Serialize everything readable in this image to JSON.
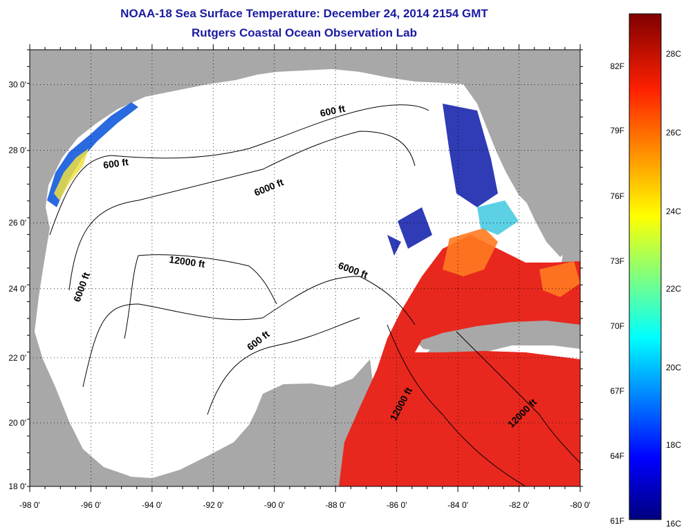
{
  "title": {
    "line1": "NOAA-18 Sea Surface Temperature:  December 24, 2014 2154 GMT",
    "line2": "Rutgers Coastal Ocean Observation Lab"
  },
  "axes": {
    "lon_labels": [
      "-98 0'",
      "-96 0'",
      "-94 0'",
      "-92 0'",
      "-90 0'",
      "-88 0'",
      "-86 0'",
      "-84 0'",
      "-82 0'",
      "-80 0'"
    ],
    "lat_labels": [
      "30 0'",
      "28 0'",
      "26 0'",
      "24 0'",
      "22 0'",
      "20 0'",
      "18 0'"
    ]
  },
  "depth_labels": [
    "600 ft",
    "600 ft",
    "6000 ft",
    "12000 ft",
    "6000 ft",
    "6000 ft",
    "600 ft",
    "12000 ft",
    "12000 ft"
  ],
  "colorbar": {
    "fahrenheit": [
      "82F",
      "79F",
      "76F",
      "73F",
      "70F",
      "67F",
      "64F",
      "61F"
    ],
    "celsius": [
      "28C",
      "26C",
      "24C",
      "22C",
      "20C",
      "18C",
      "16C"
    ]
  },
  "colors": {
    "land": "#a8a8a8",
    "water": "#ffffff",
    "title": "#1a1aa0",
    "warm": "#e8281e",
    "cool": "#0a1aa8"
  }
}
